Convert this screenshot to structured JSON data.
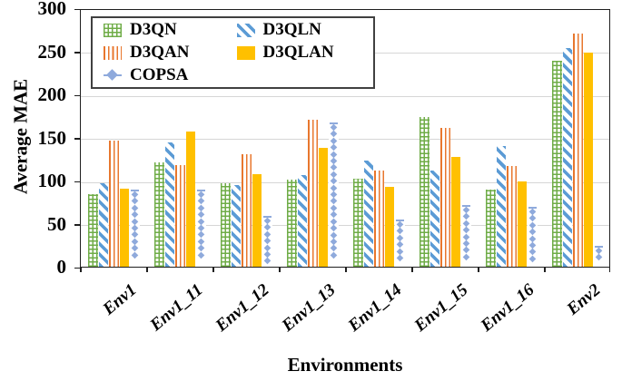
{
  "figure": {
    "ylabel": "Average MAE",
    "xlabel": "Environments"
  },
  "colors": {
    "d3qn_green": "#6FAC47",
    "d3qln_blue": "#5B9BD5",
    "d3qan_orange": "#E8772E",
    "d3qlan_gold": "#FFC000",
    "copsa_lightblue": "#8FAADC",
    "gridline_gray": "#D6D6D6",
    "axis_black": "#1F1F1F"
  },
  "chart_data": {
    "type": "bar",
    "title": "",
    "xlabel": "Environments",
    "ylabel": "Average MAE",
    "ylim": [
      0,
      300
    ],
    "yticks": [
      0,
      50,
      100,
      150,
      200,
      250,
      300
    ],
    "grid": true,
    "legend_position": "top-left-inside",
    "categories": [
      "Env1",
      "Env1_11",
      "Env1_12",
      "Env1_13",
      "Env1_14",
      "Env1_15",
      "Env1_16",
      "Env2"
    ],
    "bar_order": [
      "D3QN",
      "D3QLN",
      "D3QAN",
      "D3QLAN",
      "COPSA"
    ],
    "legend_order": [
      "D3QN",
      "D3QLN",
      "D3QAN",
      "D3QLAN",
      "COPSA"
    ],
    "series": [
      {
        "name": "D3QN",
        "pattern": "crosshatch",
        "color": "#6FAC47",
        "values": [
          84,
          121,
          97,
          101,
          102,
          174,
          89,
          239
        ]
      },
      {
        "name": "D3QLN",
        "pattern": "diag",
        "color": "#5B9BD5",
        "values": [
          97,
          144,
          95,
          106,
          123,
          112,
          140,
          254
        ]
      },
      {
        "name": "D3QAN",
        "pattern": "vlines",
        "color": "#E8772E",
        "values": [
          146,
          118,
          130,
          171,
          112,
          161,
          117,
          270
        ]
      },
      {
        "name": "D3QLAN",
        "pattern": "solid",
        "color": "#FFC000",
        "values": [
          91,
          157,
          107,
          138,
          93,
          127,
          99,
          248
        ]
      },
      {
        "name": "COPSA",
        "pattern": "diamonds",
        "color": "#8FAADC",
        "values": [
          90,
          91,
          60,
          168,
          56,
          73,
          71,
          25
        ]
      }
    ]
  }
}
